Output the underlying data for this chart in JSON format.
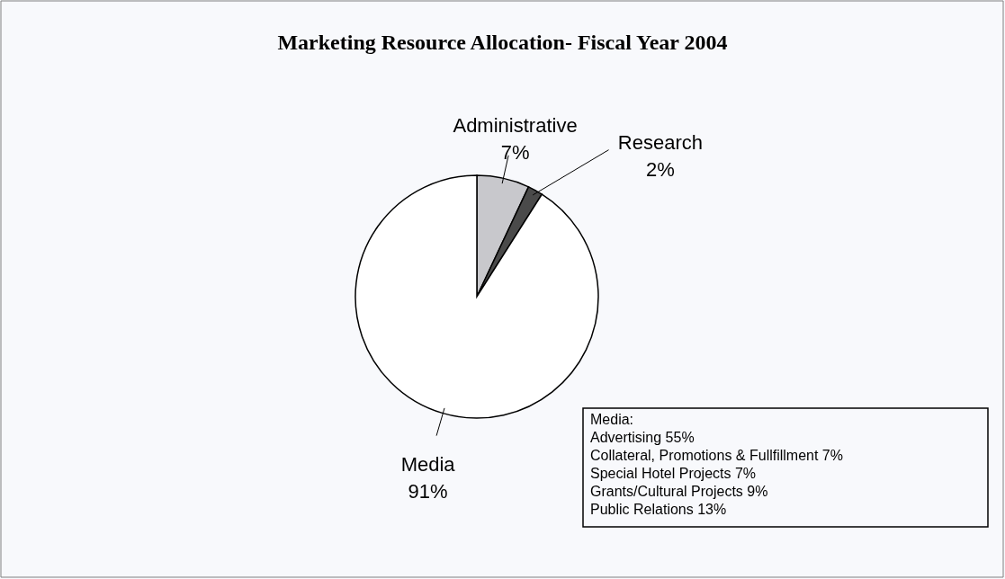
{
  "chart_data": {
    "type": "pie",
    "title": "Marketing Resource Allocation- Fiscal Year 2004",
    "categories": [
      "Administrative",
      "Research",
      "Media"
    ],
    "values": [
      7,
      2,
      91
    ],
    "value_labels": [
      "7%",
      "2%",
      "91%"
    ],
    "colors": [
      "#c8c8cc",
      "#4a4a4a",
      "#ffffff"
    ],
    "annotations": [
      "Media:",
      "Advertising 55%",
      "Collateral, Promotions & Fullfillment 7%",
      "Special Hotel Projects 7%",
      "Grants/Cultural Projects 9%",
      "Public Relations 13%"
    ]
  }
}
